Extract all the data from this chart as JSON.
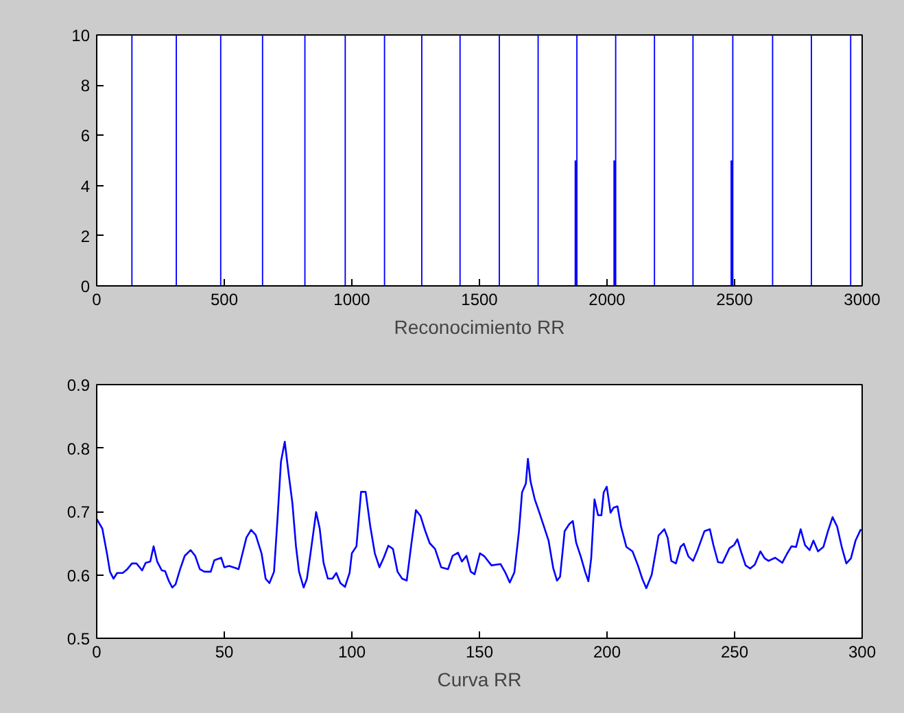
{
  "chart_data": [
    {
      "type": "bar",
      "xlabel": "Reconocimiento RR",
      "xlim": [
        0,
        3000
      ],
      "xticks": [
        0,
        500,
        1000,
        1500,
        2000,
        2500,
        3000
      ],
      "ylim": [
        0,
        10
      ],
      "yticks": [
        0,
        2,
        4,
        6,
        8,
        10
      ],
      "grid": false,
      "series": [
        {
          "color": "#0000ff",
          "x": [
            138,
            312,
            486,
            650,
            816,
            974,
            1128,
            1274,
            1424,
            1578,
            1730,
            1882,
            2034,
            2186,
            2337,
            2493,
            2649,
            2801,
            2955
          ],
          "values": [
            10,
            10,
            10,
            10,
            10,
            10,
            10,
            10,
            10,
            10,
            10,
            10,
            10,
            10,
            10,
            10,
            10,
            10,
            10
          ]
        },
        {
          "color": "#0000ff",
          "x": [
            1877,
            2029,
            2488
          ],
          "values": [
            5,
            5,
            5
          ]
        }
      ]
    },
    {
      "type": "line",
      "xlabel": "Curva RR",
      "xlim": [
        0,
        300
      ],
      "xticks": [
        0,
        50,
        100,
        150,
        200,
        250,
        300
      ],
      "ylim": [
        0.5,
        0.9
      ],
      "yticks": [
        0.5,
        0.6,
        0.7,
        0.8,
        0.9
      ],
      "grid": false,
      "marker": "none",
      "line_style": "solid",
      "series": [
        {
          "color": "#0000ff",
          "x": [
            0,
            2.2,
            4,
            5.2,
            6.6,
            8,
            10.2,
            12,
            13.8,
            15.6,
            17.8,
            19.2,
            21,
            22.3,
            23.7,
            25.5,
            26.8,
            28.2,
            29.6,
            30.9,
            32.7,
            34.5,
            36.8,
            38.6,
            40.4,
            42.2,
            44.7,
            46.1,
            48.8,
            50,
            51.9,
            54.2,
            55.6,
            56.9,
            58.7,
            60.5,
            62.3,
            64.6,
            66.2,
            67.7,
            69.5,
            70.9,
            72.2,
            73.7,
            75.2,
            76.7,
            78.1,
            79.3,
            81.1,
            82.4,
            83.8,
            86,
            87.4,
            88.9,
            90.6,
            92.4,
            93.9,
            95.5,
            97.3,
            99.1,
            100,
            101.8,
            103.6,
            105.4,
            107.2,
            109,
            110.8,
            112.5,
            114.3,
            116.1,
            117.9,
            119.7,
            121.5,
            123.3,
            125.1,
            126.9,
            128.7,
            130.5,
            132.6,
            135,
            137.7,
            139.5,
            141.6,
            143.1,
            144.9,
            146.6,
            148.1,
            150.2,
            152,
            154.7,
            158.3,
            160.1,
            161.9,
            163.7,
            165.5,
            166.7,
            168.2,
            169,
            170,
            171.7,
            173.5,
            175.3,
            177.1,
            178.9,
            180.4,
            181.6,
            183.4,
            185.2,
            186.6,
            187.9,
            189.7,
            191.5,
            192.7,
            193.8,
            195.1,
            196.5,
            197.8,
            198.7,
            199.9,
            201.4,
            202.6,
            204.1,
            205.5,
            207.6,
            210,
            212.1,
            213.9,
            215.4,
            217.5,
            220.2,
            222.5,
            223.8,
            225.2,
            227,
            228.8,
            230.1,
            231.9,
            233.7,
            235.5,
            238.2,
            240.3,
            241.7,
            243.5,
            245.3,
            248,
            249.8,
            251.1,
            252.5,
            254.3,
            256.1,
            257.9,
            260.1,
            261.8,
            263.3,
            265.9,
            268.7,
            270.5,
            272.3,
            274.1,
            275.9,
            277.6,
            279.4,
            280.9,
            282.7,
            284.8,
            286.6,
            288.4,
            290.2,
            292,
            293.8,
            295.6,
            297.4,
            299.5
          ],
          "values": [
            0.688,
            0.673,
            0.634,
            0.605,
            0.594,
            0.603,
            0.603,
            0.609,
            0.618,
            0.618,
            0.607,
            0.619,
            0.621,
            0.645,
            0.621,
            0.607,
            0.606,
            0.591,
            0.58,
            0.585,
            0.609,
            0.63,
            0.639,
            0.63,
            0.609,
            0.605,
            0.605,
            0.623,
            0.627,
            0.612,
            0.614,
            0.611,
            0.609,
            0.63,
            0.659,
            0.671,
            0.663,
            0.634,
            0.594,
            0.587,
            0.605,
            0.691,
            0.778,
            0.81,
            0.76,
            0.713,
            0.645,
            0.605,
            0.58,
            0.594,
            0.634,
            0.699,
            0.673,
            0.619,
            0.594,
            0.594,
            0.603,
            0.587,
            0.581,
            0.603,
            0.634,
            0.645,
            0.731,
            0.731,
            0.677,
            0.634,
            0.612,
            0.627,
            0.646,
            0.641,
            0.605,
            0.594,
            0.591,
            0.648,
            0.702,
            0.693,
            0.67,
            0.65,
            0.641,
            0.612,
            0.609,
            0.63,
            0.635,
            0.621,
            0.63,
            0.605,
            0.601,
            0.634,
            0.629,
            0.615,
            0.617,
            0.604,
            0.588,
            0.604,
            0.669,
            0.73,
            0.744,
            0.783,
            0.748,
            0.719,
            0.698,
            0.676,
            0.654,
            0.611,
            0.591,
            0.597,
            0.669,
            0.68,
            0.685,
            0.651,
            0.629,
            0.604,
            0.59,
            0.626,
            0.719,
            0.694,
            0.694,
            0.73,
            0.739,
            0.698,
            0.706,
            0.708,
            0.676,
            0.644,
            0.637,
            0.615,
            0.593,
            0.579,
            0.6,
            0.662,
            0.672,
            0.658,
            0.622,
            0.618,
            0.644,
            0.649,
            0.629,
            0.622,
            0.639,
            0.669,
            0.672,
            0.647,
            0.62,
            0.619,
            0.642,
            0.647,
            0.656,
            0.637,
            0.615,
            0.61,
            0.616,
            0.637,
            0.626,
            0.622,
            0.627,
            0.619,
            0.633,
            0.645,
            0.644,
            0.672,
            0.647,
            0.639,
            0.654,
            0.637,
            0.644,
            0.669,
            0.691,
            0.676,
            0.644,
            0.618,
            0.626,
            0.654,
            0.672
          ]
        }
      ]
    }
  ]
}
